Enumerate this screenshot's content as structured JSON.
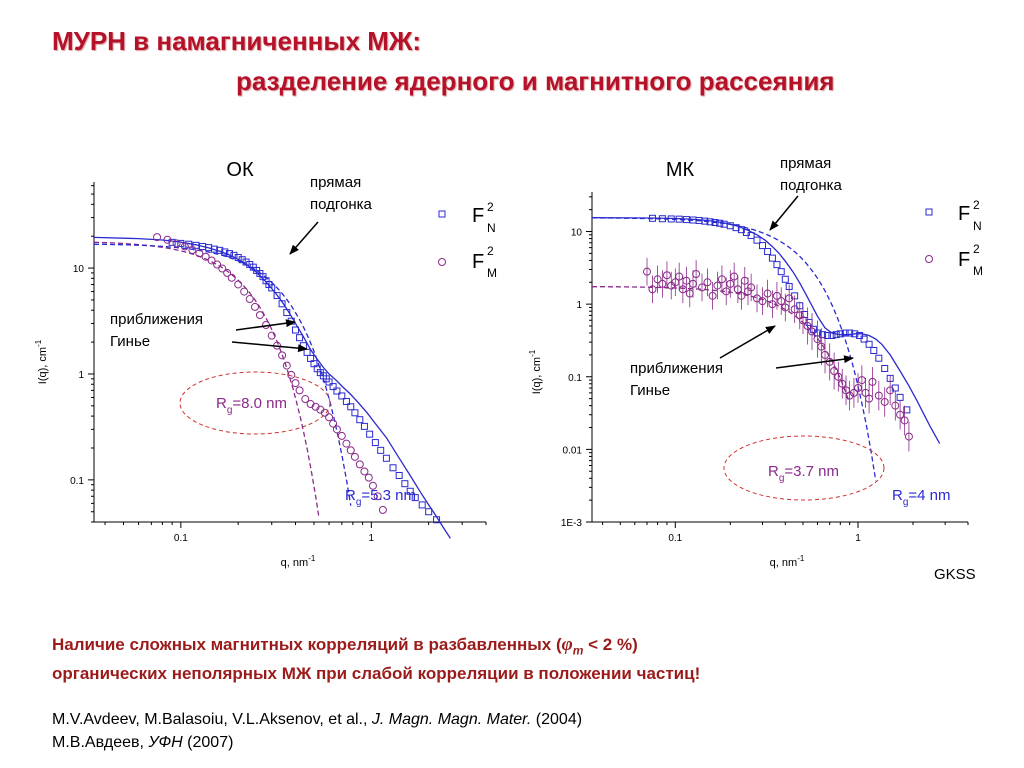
{
  "header": {
    "title_line1": "МУРН в намагниченных МЖ:",
    "title_line2": "разделение ядерного и магнитного рассеяния"
  },
  "colors": {
    "title": "#b5122a",
    "fn_series": "#2a2ad0",
    "fm_series": "#8a2a8a",
    "ellipse": "#d03030"
  },
  "chart_data": [
    {
      "type": "scatter",
      "panel_label": "ОК",
      "xscale": "log",
      "yscale": "log",
      "xlim": [
        0.035,
        4.0
      ],
      "ylim": [
        0.04,
        65
      ],
      "xlabel": "q, nm",
      "xlabel_sup": "-1",
      "ylabel": "I(q), cm",
      "ylabel_sup": "-1",
      "xticks": [
        {
          "v": 0.1,
          "label": "0.1"
        },
        {
          "v": 1,
          "label": "1"
        }
      ],
      "yticks": [
        {
          "v": 0.1,
          "label": "0.1"
        },
        {
          "v": 1,
          "label": "1"
        },
        {
          "v": 10,
          "label": "10"
        }
      ],
      "series": [
        {
          "name": "F_N^2",
          "marker": "square",
          "color": "#2a2ad0",
          "x": [
            0.09,
            0.1,
            0.11,
            0.12,
            0.13,
            0.14,
            0.15,
            0.16,
            0.17,
            0.18,
            0.19,
            0.2,
            0.21,
            0.22,
            0.23,
            0.24,
            0.25,
            0.26,
            0.27,
            0.28,
            0.29,
            0.3,
            0.32,
            0.34,
            0.36,
            0.38,
            0.4,
            0.42,
            0.44,
            0.46,
            0.48,
            0.5,
            0.52,
            0.54,
            0.56,
            0.58,
            0.6,
            0.63,
            0.66,
            0.7,
            0.74,
            0.78,
            0.82,
            0.87,
            0.92,
            0.98,
            1.05,
            1.12,
            1.2,
            1.3,
            1.4,
            1.5,
            1.6,
            1.7,
            1.85,
            2.0,
            2.2
          ],
          "y": [
            17.5,
            17.1,
            16.8,
            16.4,
            16,
            15.6,
            15.1,
            14.7,
            14.2,
            13.7,
            13.2,
            12.6,
            12,
            11.4,
            10.8,
            10.2,
            9.5,
            8.9,
            8.3,
            7.6,
            7,
            6.5,
            5.5,
            4.6,
            3.8,
            3.15,
            2.6,
            2.2,
            1.85,
            1.6,
            1.4,
            1.25,
            1.12,
            1.03,
            0.96,
            0.9,
            0.84,
            0.76,
            0.69,
            0.62,
            0.55,
            0.49,
            0.43,
            0.37,
            0.32,
            0.27,
            0.225,
            0.19,
            0.16,
            0.13,
            0.11,
            0.092,
            0.078,
            0.068,
            0.058,
            0.05,
            0.042
          ]
        },
        {
          "name": "F_M^2",
          "marker": "circle",
          "color": "#8a2a8a",
          "x": [
            0.075,
            0.085,
            0.095,
            0.105,
            0.115,
            0.125,
            0.135,
            0.145,
            0.155,
            0.165,
            0.175,
            0.185,
            0.2,
            0.215,
            0.23,
            0.245,
            0.26,
            0.28,
            0.3,
            0.32,
            0.34,
            0.36,
            0.38,
            0.4,
            0.42,
            0.45,
            0.48,
            0.51,
            0.54,
            0.57,
            0.6,
            0.63,
            0.66,
            0.7,
            0.74,
            0.78,
            0.82,
            0.87,
            0.92,
            0.97,
            1.02,
            1.08,
            1.15
          ],
          "y": [
            19.6,
            18.5,
            17.1,
            16,
            14.8,
            13.8,
            12.8,
            11.8,
            10.8,
            9.9,
            9,
            8.1,
            7,
            6,
            5.1,
            4.3,
            3.6,
            2.9,
            2.3,
            1.85,
            1.5,
            1.2,
            0.98,
            0.82,
            0.7,
            0.58,
            0.52,
            0.49,
            0.46,
            0.43,
            0.39,
            0.34,
            0.3,
            0.26,
            0.22,
            0.19,
            0.165,
            0.14,
            0.12,
            0.105,
            0.088,
            0.07,
            0.052
          ]
        }
      ],
      "fits": [
        {
          "name": "прямая подгонка",
          "color": "#2a2ad0",
          "style": "solid",
          "x": [
            0.035,
            0.06,
            0.08,
            0.1,
            0.12,
            0.14,
            0.16,
            0.18,
            0.2,
            0.22,
            0.25,
            0.28,
            0.31,
            0.34,
            0.37,
            0.4,
            0.44,
            0.48,
            0.52,
            0.56,
            0.6,
            0.65,
            0.7,
            0.78,
            0.86,
            0.95,
            1.05,
            1.2,
            1.4,
            1.6,
            1.8,
            2.0,
            2.2,
            2.4,
            2.6
          ],
          "y": [
            19.5,
            19.0,
            18.4,
            17.6,
            16.6,
            15.5,
            14.4,
            13.3,
            12.1,
            10.9,
            9.1,
            7.4,
            6.0,
            4.8,
            3.8,
            3.0,
            2.25,
            1.7,
            1.38,
            1.15,
            1.0,
            0.88,
            0.77,
            0.64,
            0.53,
            0.43,
            0.34,
            0.25,
            0.16,
            0.11,
            0.078,
            0.058,
            0.045,
            0.035,
            0.028
          ]
        },
        {
          "name": "Rg=8.0 nm",
          "color": "#8a2a8a",
          "style": "dashed",
          "Rg": 8.0,
          "I0": 18,
          "x_range": [
            0.035,
            0.53
          ]
        },
        {
          "name": "Rg=5.3 nm",
          "color": "#2a2ad0",
          "style": "dashed",
          "Rg": 5.3,
          "I0": 17,
          "x_range": [
            0.035,
            0.78
          ]
        }
      ],
      "legend": [
        {
          "symbol": "square",
          "color": "#2a2ad0",
          "base": "F",
          "sup": "2",
          "sub": "N"
        },
        {
          "symbol": "circle",
          "color": "#8a2a8a",
          "base": "F",
          "sup": "2",
          "sub": "M"
        }
      ],
      "annotations": {
        "direct_fit": [
          "прямая",
          "подгонка"
        ],
        "guinier": [
          "приближения",
          "Гинье"
        ],
        "rg_magnetic": {
          "label": "R",
          "sub": "g",
          "value": "=8.0 nm",
          "color": "#8a2a8a"
        },
        "rg_nuclear": {
          "label": "R",
          "sub": "g",
          "value": "=5.3 nm",
          "color": "#2a2ad0"
        }
      }
    },
    {
      "type": "scatter",
      "panel_label": "МК",
      "xscale": "log",
      "yscale": "log",
      "xlim": [
        0.035,
        4.0
      ],
      "ylim": [
        0.001,
        35
      ],
      "xlabel": "q, nm",
      "xlabel_sup": "-1",
      "ylabel": "I(q), cm",
      "ylabel_sup": "-1",
      "xticks": [
        {
          "v": 0.1,
          "label": "0.1"
        },
        {
          "v": 1,
          "label": "1"
        }
      ],
      "yticks": [
        {
          "v": 0.001,
          "label": "1E-3"
        },
        {
          "v": 0.01,
          "label": "0.01"
        },
        {
          "v": 0.1,
          "label": "0.1"
        },
        {
          "v": 1,
          "label": "1"
        },
        {
          "v": 10,
          "label": "10"
        }
      ],
      "source_label": "GKSS",
      "series": [
        {
          "name": "F_N^2",
          "marker": "square",
          "color": "#2a2ad0",
          "x": [
            0.075,
            0.085,
            0.095,
            0.105,
            0.115,
            0.125,
            0.135,
            0.145,
            0.155,
            0.165,
            0.175,
            0.185,
            0.2,
            0.215,
            0.23,
            0.245,
            0.26,
            0.28,
            0.3,
            0.32,
            0.34,
            0.36,
            0.38,
            0.4,
            0.42,
            0.45,
            0.48,
            0.51,
            0.54,
            0.57,
            0.6,
            0.64,
            0.68,
            0.72,
            0.76,
            0.8,
            0.85,
            0.9,
            0.96,
            1.02,
            1.08,
            1.15,
            1.22,
            1.3,
            1.4,
            1.5,
            1.6,
            1.7,
            1.85
          ],
          "y": [
            15.2,
            15,
            14.9,
            14.8,
            14.6,
            14.4,
            14.2,
            13.9,
            13.6,
            13.3,
            13,
            12.6,
            12,
            11.3,
            10.6,
            9.7,
            8.8,
            7.6,
            6.4,
            5.3,
            4.3,
            3.5,
            2.8,
            2.2,
            1.75,
            1.3,
            0.95,
            0.72,
            0.56,
            0.45,
            0.4,
            0.38,
            0.37,
            0.37,
            0.38,
            0.39,
            0.4,
            0.4,
            0.39,
            0.37,
            0.33,
            0.28,
            0.23,
            0.18,
            0.13,
            0.095,
            0.07,
            0.052,
            0.035
          ]
        },
        {
          "name": "F_M^2",
          "marker": "circle",
          "color": "#8a2a8a",
          "x": [
            0.07,
            0.075,
            0.08,
            0.085,
            0.09,
            0.095,
            0.1,
            0.105,
            0.11,
            0.115,
            0.12,
            0.125,
            0.13,
            0.14,
            0.15,
            0.16,
            0.17,
            0.18,
            0.19,
            0.2,
            0.21,
            0.22,
            0.23,
            0.24,
            0.25,
            0.26,
            0.28,
            0.3,
            0.32,
            0.34,
            0.36,
            0.38,
            0.4,
            0.42,
            0.45,
            0.48,
            0.5,
            0.53,
            0.56,
            0.6,
            0.63,
            0.66,
            0.7,
            0.74,
            0.78,
            0.82,
            0.86,
            0.9,
            0.95,
            1.0,
            1.05,
            1.1,
            1.15,
            1.2,
            1.3,
            1.4,
            1.5,
            1.6,
            1.7,
            1.8,
            1.9
          ],
          "y": [
            2.8,
            1.6,
            2.2,
            1.9,
            2.5,
            1.8,
            2.0,
            2.4,
            1.6,
            2.1,
            1.4,
            1.9,
            2.6,
            1.7,
            2.0,
            1.3,
            1.8,
            2.2,
            1.5,
            1.9,
            2.4,
            1.6,
            1.3,
            2.1,
            1.5,
            1.7,
            1.2,
            1.1,
            1.4,
            1.0,
            1.3,
            1.1,
            0.9,
            1.2,
            0.85,
            0.7,
            0.6,
            0.5,
            0.42,
            0.33,
            0.26,
            0.2,
            0.16,
            0.12,
            0.1,
            0.08,
            0.065,
            0.055,
            0.06,
            0.07,
            0.09,
            0.06,
            0.05,
            0.085,
            0.055,
            0.045,
            0.065,
            0.04,
            0.03,
            0.025,
            0.015
          ]
        }
      ],
      "fits": [
        {
          "name": "прямая подгонка",
          "color": "#2a2ad0",
          "style": "solid",
          "x": [
            0.035,
            0.06,
            0.08,
            0.1,
            0.12,
            0.14,
            0.16,
            0.18,
            0.2,
            0.22,
            0.25,
            0.28,
            0.31,
            0.34,
            0.37,
            0.4,
            0.44,
            0.48,
            0.52,
            0.56,
            0.6,
            0.66,
            0.72,
            0.8,
            0.88,
            0.96,
            1.05,
            1.15,
            1.25,
            1.35,
            1.5,
            1.7,
            1.9,
            2.1,
            2.3,
            2.5,
            2.8
          ],
          "y": [
            15.5,
            15.4,
            15.3,
            15.1,
            14.8,
            14.4,
            13.9,
            13.3,
            12.6,
            11.8,
            10.4,
            9.0,
            7.6,
            6.2,
            5.0,
            3.9,
            2.8,
            1.95,
            1.35,
            0.95,
            0.68,
            0.47,
            0.4,
            0.38,
            0.38,
            0.39,
            0.39,
            0.37,
            0.33,
            0.28,
            0.2,
            0.12,
            0.075,
            0.047,
            0.03,
            0.02,
            0.012
          ]
        },
        {
          "name": "Rg=3.7 nm",
          "color": "#8a2a8a",
          "style": "dashed",
          "Rg": 3.7,
          "I0": 1.75,
          "x_range": [
            0.035,
            0.9
          ]
        },
        {
          "name": "Rg=4 nm",
          "color": "#2a2ad0",
          "style": "dashed",
          "Rg": 4.0,
          "I0": 15.5,
          "x_range": [
            0.035,
            1.25
          ]
        }
      ],
      "legend": [
        {
          "symbol": "square",
          "color": "#2a2ad0",
          "base": "F",
          "sup": "2",
          "sub": "N"
        },
        {
          "symbol": "circle",
          "color": "#8a2a8a",
          "base": "F",
          "sup": "2",
          "sub": "M"
        }
      ],
      "annotations": {
        "direct_fit": [
          "прямая",
          "подгонка"
        ],
        "guinier": [
          "приближения",
          "Гинье"
        ],
        "rg_magnetic": {
          "label": "R",
          "sub": "g",
          "value": "=3.7 nm",
          "color": "#8a2a8a"
        },
        "rg_nuclear": {
          "label": "R",
          "sub": "g",
          "value": "=4 nm",
          "color": "#2a2ad0"
        }
      }
    }
  ],
  "conclusion": {
    "line1_a": "Наличие сложных магнитных корреляций в разбавленных (",
    "phi": "φ",
    "phi_sub": "m",
    "line1_b": " < 2 %)",
    "line2": "органических неполярных МЖ при слабой корреляции в положении частиц!"
  },
  "references": {
    "ref1_authors": "M.V.Avdeev, M.Balasoiu, V.L.Aksenov, et al., ",
    "ref1_journal": "J. Magn. Magn. Mater.",
    "ref1_year": " (2004)",
    "ref2_authors": "М.В.Авдеев, ",
    "ref2_journal": "УФН",
    "ref2_year": "  (2007)"
  }
}
